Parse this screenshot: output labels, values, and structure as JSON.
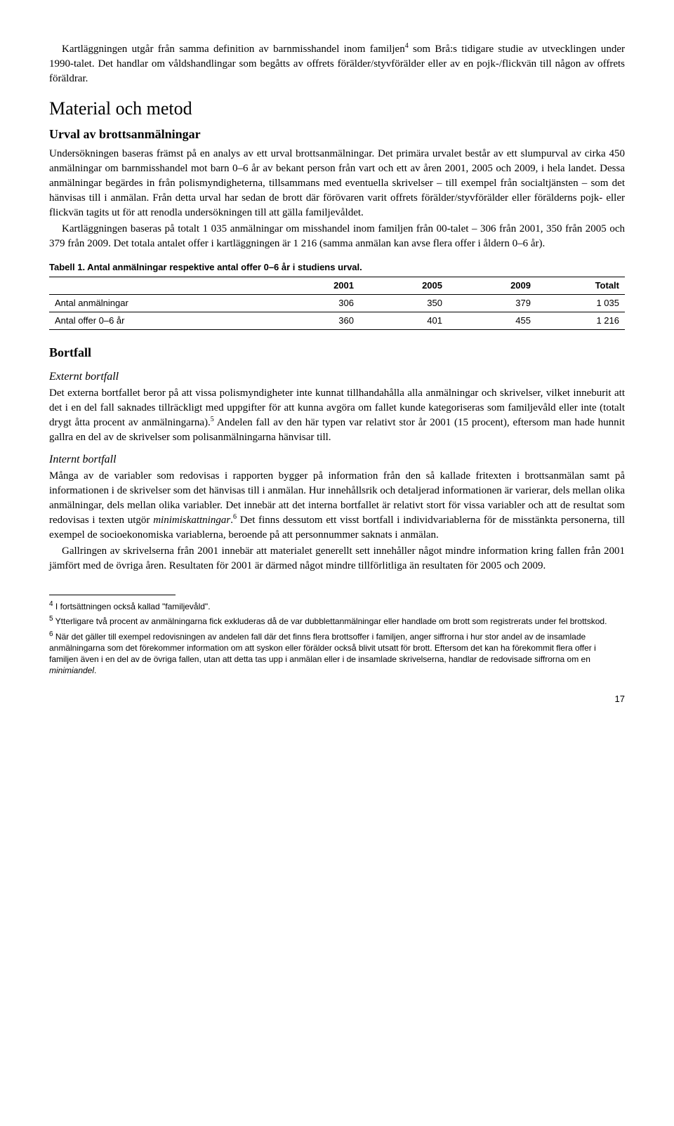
{
  "intro": {
    "p1a": "Kartläggningen utgår från samma definition av barnmisshandel inom familjen",
    "p1b": " som Brå:s tidigare studie av utvecklingen under 1990-talet. Det handlar om våldshandlingar som begåtts av offrets förälder/styvförälder eller av en pojk-/flickvän till någon av offrets föräldrar.",
    "fn4": "4"
  },
  "section1": {
    "h1": "Material och metod",
    "h2": "Urval av brottsanmälningar",
    "p1": "Undersökningen baseras främst på en analys av ett urval brottsanmälningar. Det primära urvalet består av ett slumpurval av cirka 450 anmälningar om barnmisshandel mot barn 0–6 år av bekant person från vart och ett av åren 2001, 2005 och 2009, i hela landet. Dessa anmälningar begärdes in från polismyndigheterna, tillsammans med eventuella skrivelser – till exempel från socialtjänsten – som det hänvisas till i anmälan. Från detta urval har sedan de brott där förövaren varit offrets förälder/styvförälder eller förälderns pojk- eller flickvän tagits ut för att renodla undersökningen till att gälla familjevåldet.",
    "p2": "Kartläggningen baseras på totalt 1 035 anmälningar om misshandel inom familjen från 00-talet – 306 från 2001, 350 från 2005 och 379 från 2009. Det totala antalet offer i kartläggningen är 1 216 (samma anmälan kan avse flera offer i åldern 0–6 år)."
  },
  "table": {
    "caption": "Tabell 1. Antal anmälningar respektive antal offer 0–6 år i studiens urval.",
    "headers": [
      "",
      "2001",
      "2005",
      "2009",
      "Totalt"
    ],
    "rows": [
      [
        "Antal anmälningar",
        "306",
        "350",
        "379",
        "1 035"
      ],
      [
        "Antal offer 0–6 år",
        "360",
        "401",
        "455",
        "1 216"
      ]
    ]
  },
  "section2": {
    "h2": "Bortfall",
    "sub1": {
      "h3": "Externt bortfall",
      "p1a": "Det externa bortfallet beror på att vissa polismyndigheter inte kunnat tillhandahålla alla anmälningar och skrivelser, vilket inneburit att det i en del fall saknades tillräckligt med uppgifter för att kunna avgöra om fallet kunde kategoriseras som familjevåld eller inte (totalt drygt åtta procent av anmälningarna).",
      "fn5": "5",
      "p1b": " Andelen fall av den här typen var relativt stor år 2001 (15 procent), eftersom man hade hunnit gallra en del av de skrivelser som polisanmälningarna hänvisar till."
    },
    "sub2": {
      "h3": "Internt bortfall",
      "p1a": "Många av de variabler som redovisas i rapporten bygger på information från den så kallade fritexten i brottsanmälan samt på informationen i de skrivelser som det hänvisas till i anmälan. Hur innehållsrik och detaljerad informationen är varierar, dels mellan olika anmälningar, dels mellan olika variabler. Det innebär att det interna bortfallet är relativt stort för vissa variabler och att de resultat som redovisas i texten utgör ",
      "p1_italic": "minimiskattningar",
      "p1b": ".",
      "fn6": "6",
      "p1c": " Det finns dessutom ett visst bortfall i individvariablerna för de misstänkta personerna, till exempel de socioekonomiska variablerna, beroende på att personnummer saknats i anmälan.",
      "p2": "Gallringen av skrivelserna från 2001 innebär att materialet generellt sett innehåller något mindre information kring fallen från 2001 jämfört med de övriga åren. Resultaten för 2001 är därmed något mindre tillförlitliga än resultaten för 2005 och 2009."
    }
  },
  "footnotes": {
    "f4": {
      "num": "4",
      "text": " I fortsättningen också kallad \"familjevåld\"."
    },
    "f5": {
      "num": "5",
      "text": " Ytterligare två procent av anmälningarna fick exkluderas då de var dubblettanmälningar eller handlade om brott som registrerats under fel brottskod."
    },
    "f6": {
      "num": "6",
      "text_a": " När det gäller till exempel redovisningen av andelen fall där det finns flera brottsoffer i familjen, anger siffrorna i hur stor andel av de insamlade anmälningarna som det förekommer information om att syskon eller förälder också blivit utsatt för brott. Eftersom det kan ha förekommit flera offer i familjen även i en del av de övriga fallen, utan att detta tas upp i anmälan eller i de insamlade skrivelserna, handlar de redovisade siffrorna om en ",
      "text_italic": "minimiandel",
      "text_b": "."
    }
  },
  "page_number": "17"
}
